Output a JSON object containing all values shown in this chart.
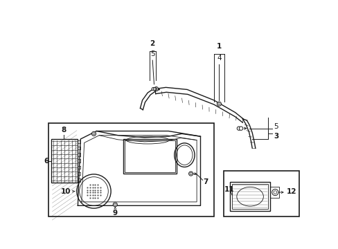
{
  "bg_color": "#ffffff",
  "fig_width": 4.89,
  "fig_height": 3.6,
  "dpi": 100,
  "color": "#1a1a1a",
  "lw_main": 1.0,
  "lw_thin": 0.6,
  "lw_leader": 0.7,
  "label_fs": 7.5
}
